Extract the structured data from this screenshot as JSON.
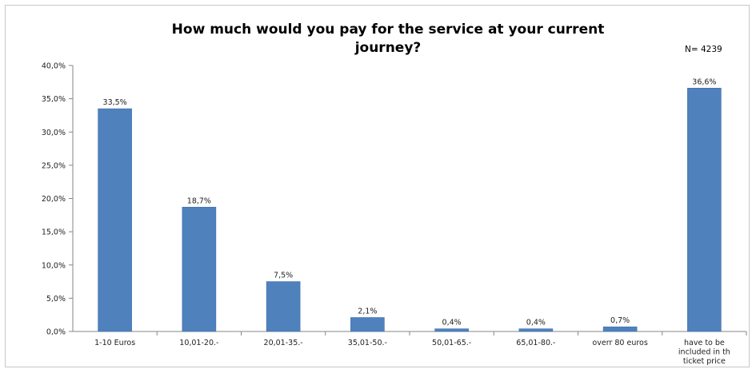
{
  "chart_data": {
    "type": "bar",
    "title": "How much would you pay  for the service at your current journey?",
    "title_lines": [
      "How much would you pay  for the service at your current",
      "journey?"
    ],
    "annotation": "N= 4239",
    "xlabel": "",
    "ylabel": "",
    "ylim": [
      0,
      40
    ],
    "y_ticks": [
      0,
      5,
      10,
      15,
      20,
      25,
      30,
      35,
      40
    ],
    "y_tick_labels": [
      "0,0%",
      "5,0%",
      "10,0%",
      "15,0%",
      "20,0%",
      "25,0%",
      "30,0%",
      "35,0%",
      "40,0%"
    ],
    "categories": [
      [
        "1-10 Euros"
      ],
      [
        "10,01-20.-"
      ],
      [
        "20,01-35.-"
      ],
      [
        "35,01-50.-"
      ],
      [
        "50,01-65.-"
      ],
      [
        "65,01-80.-"
      ],
      [
        "overr 80 euros"
      ],
      [
        "have to be",
        "included in th",
        "ticket price"
      ]
    ],
    "values": [
      33.5,
      18.7,
      7.5,
      2.1,
      0.4,
      0.4,
      0.7,
      36.6
    ],
    "data_labels": [
      "33,5%",
      "18,7%",
      "7,5%",
      "2,1%",
      "0,4%",
      "0,4%",
      "0,7%",
      "36,6%"
    ],
    "bar_color": "#4f81bd",
    "grid": false,
    "legend": "none"
  }
}
